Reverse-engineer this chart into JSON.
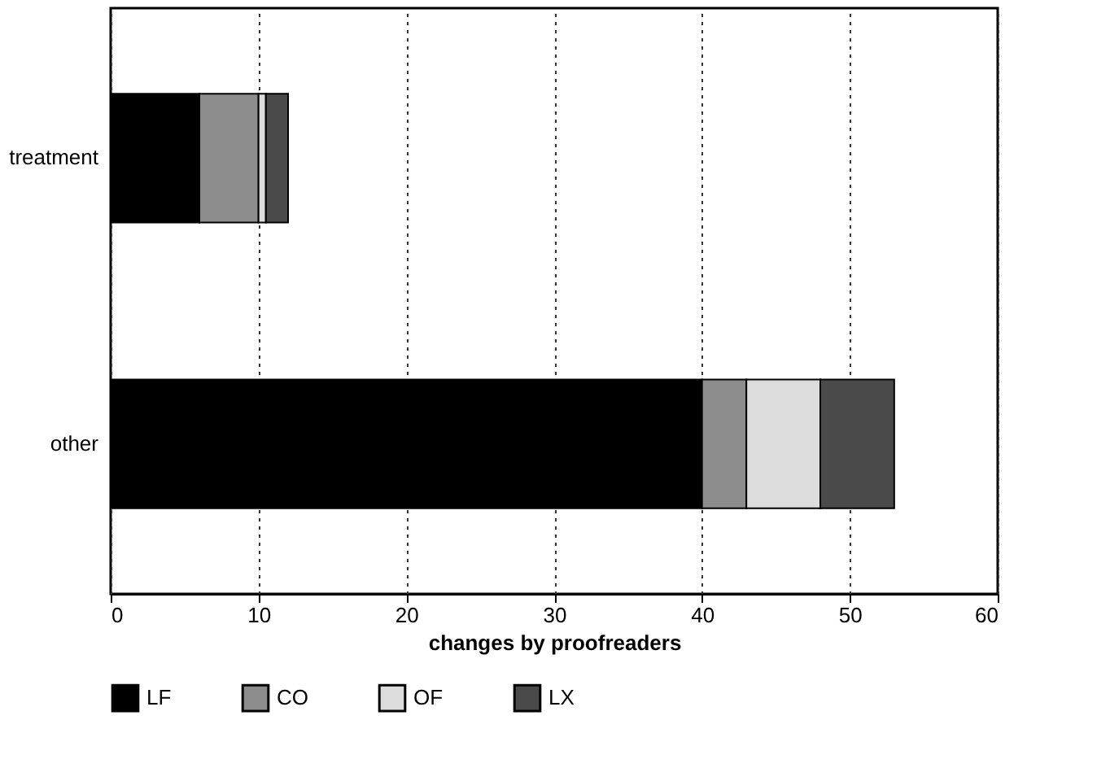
{
  "chart_data": {
    "type": "bar",
    "orientation": "horizontal",
    "stacked": true,
    "xlabel": "changes by proofreaders",
    "categories": [
      "treatment",
      "other"
    ],
    "series": [
      {
        "name": "LF",
        "color": "#000000",
        "values": [
          6,
          40
        ]
      },
      {
        "name": "CO",
        "color": "#8c8c8c",
        "values": [
          4,
          3
        ]
      },
      {
        "name": "OF",
        "color": "#dcdcdc",
        "values": [
          0.5,
          5
        ]
      },
      {
        "name": "LX",
        "color": "#4a4a4a",
        "values": [
          1.5,
          5
        ]
      }
    ],
    "xlim": [
      0,
      60
    ],
    "xticks": [
      0,
      10,
      20,
      30,
      40,
      50,
      60
    ],
    "grid": "x",
    "legend": "bottom"
  }
}
